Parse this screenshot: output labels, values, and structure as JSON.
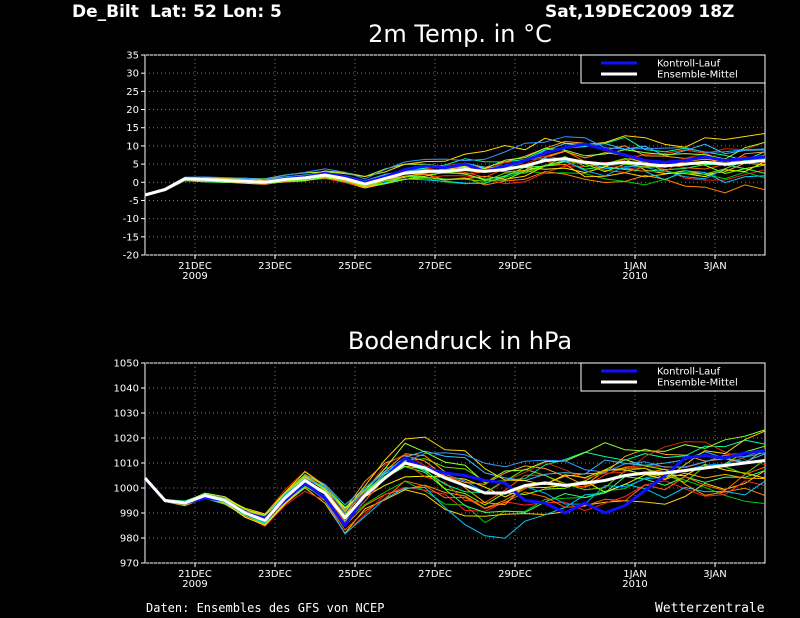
{
  "header": {
    "station": "De_Bilt",
    "coords": "Lat: 52 Lon: 5",
    "run": "Sat,19DEC2009 18Z"
  },
  "footer": {
    "source": "Daten: Ensembles des GFS von NCEP",
    "brand": "Wetterzentrale"
  },
  "x_ticks": [
    {
      "d": 1.25,
      "top": "21DEC",
      "bottom": "2009"
    },
    {
      "d": 3.25,
      "top": "23DEC",
      "bottom": ""
    },
    {
      "d": 5.25,
      "top": "25DEC",
      "bottom": ""
    },
    {
      "d": 7.25,
      "top": "27DEC",
      "bottom": ""
    },
    {
      "d": 9.25,
      "top": "29DEC",
      "bottom": ""
    },
    {
      "d": 12.25,
      "top": "1JAN",
      "bottom": "2010"
    },
    {
      "d": 14.25,
      "top": "3JAN",
      "bottom": ""
    }
  ],
  "legend": [
    {
      "label": "Kontroll-Lauf",
      "color": "#1010ff"
    },
    {
      "label": "Ensemble-Mittel",
      "color": "#ffffff"
    }
  ],
  "member_colors": [
    "#00cc00",
    "#ff8800",
    "#ffcc00",
    "#ff2020",
    "#00ccff",
    "#33ff66",
    "#ffee00",
    "#ff6600",
    "#88ff00",
    "#00aaff",
    "#ff4400",
    "#66dd00",
    "#ffaa00",
    "#00ff99",
    "#ff9933",
    "#cc3300",
    "#33bbff",
    "#99ff33",
    "#ffd700",
    "#3399ff"
  ],
  "chart_data": [
    {
      "type": "line",
      "title": "2m Temp. in °C",
      "x_unit": "days since 19DEC2009 18Z",
      "xlim": [
        0,
        15.5
      ],
      "ylim": [
        -20,
        35
      ],
      "yticks": [
        -20,
        -15,
        -10,
        -5,
        0,
        5,
        10,
        15,
        20,
        25,
        30,
        35
      ],
      "grid": true,
      "legend_position": "top-right",
      "x": [
        0.0,
        0.5,
        1.0,
        1.5,
        2.0,
        2.5,
        3.0,
        3.5,
        4.0,
        4.5,
        5.0,
        5.5,
        6.0,
        6.5,
        7.0,
        7.5,
        8.0,
        8.5,
        9.0,
        9.5,
        10.0,
        10.5,
        11.0,
        11.5,
        12.0,
        12.5,
        13.0,
        13.5,
        14.0,
        14.5,
        15.0,
        15.5
      ],
      "series": [
        {
          "name": "Kontroll-Lauf",
          "values": [
            -3.5,
            -2.0,
            1.0,
            0.8,
            0.5,
            0.3,
            0.0,
            1.0,
            1.5,
            2.5,
            1.5,
            0.0,
            1.5,
            3.5,
            4.5,
            4.0,
            5.0,
            3.0,
            4.5,
            6.0,
            8.0,
            9.5,
            10.5,
            9.0,
            7.5,
            6.0,
            5.5,
            6.0,
            7.0,
            6.0,
            6.5,
            7.0
          ]
        },
        {
          "name": "Ensemble-Mittel",
          "values": [
            -3.5,
            -2.0,
            1.0,
            0.8,
            0.5,
            0.3,
            0.0,
            0.8,
            1.2,
            2.0,
            1.0,
            -0.5,
            1.0,
            2.5,
            3.0,
            3.0,
            3.5,
            3.0,
            3.5,
            4.5,
            6.0,
            6.5,
            5.5,
            5.0,
            5.5,
            5.0,
            4.5,
            5.0,
            5.5,
            5.0,
            5.5,
            6.0
          ]
        }
      ],
      "spread": [
        0,
        0.3,
        0.5,
        0.6,
        0.7,
        0.8,
        0.9,
        1.0,
        1.1,
        1.2,
        1.4,
        1.6,
        2.0,
        2.5,
        3.0,
        3.3,
        3.6,
        3.9,
        4.2,
        4.5,
        4.8,
        5.0,
        5.2,
        5.4,
        5.6,
        5.7,
        5.8,
        5.9,
        6.0,
        6.0,
        6.0,
        6.0
      ],
      "members": 20
    },
    {
      "type": "line",
      "title": "Bodendruck in hPa",
      "x_unit": "days since 19DEC2009 18Z",
      "xlim": [
        0,
        15.5
      ],
      "ylim": [
        970,
        1050
      ],
      "yticks": [
        970,
        980,
        990,
        1000,
        1010,
        1020,
        1030,
        1040,
        1050
      ],
      "grid": true,
      "legend_position": "top-right",
      "x": [
        0.0,
        0.5,
        1.0,
        1.5,
        2.0,
        2.5,
        3.0,
        3.5,
        4.0,
        4.5,
        5.0,
        5.5,
        6.0,
        6.5,
        7.0,
        7.5,
        8.0,
        8.5,
        9.0,
        9.5,
        10.0,
        10.5,
        11.0,
        11.5,
        12.0,
        12.5,
        13.0,
        13.5,
        14.0,
        14.5,
        15.0,
        15.5
      ],
      "series": [
        {
          "name": "Kontroll-Lauf",
          "values": [
            1004.0,
            995.0,
            994.0,
            996.0,
            995.0,
            990.0,
            988.0,
            995.0,
            1002.0,
            996.0,
            985.0,
            997.0,
            1004.0,
            1012.0,
            1008.0,
            1006.0,
            1005.0,
            1003.0,
            1002.0,
            995.0,
            994.0,
            990.0,
            994.0,
            990.0,
            993.0,
            999.0,
            1005.0,
            1012.0,
            1013.0,
            1012.0,
            1014.0,
            1015.0
          ]
        },
        {
          "name": "Ensemble-Mittel",
          "values": [
            1004.0,
            995.0,
            994.0,
            997.0,
            995.0,
            990.0,
            987.0,
            996.0,
            1003.0,
            998.0,
            988.0,
            997.0,
            1004.0,
            1010.0,
            1008.0,
            1004.0,
            1001.0,
            998.0,
            998.0,
            1001.0,
            1002.0,
            1001.0,
            1002.0,
            1003.0,
            1005.0,
            1006.0,
            1006.0,
            1007.0,
            1008.0,
            1009.0,
            1010.0,
            1011.0
          ]
        }
      ],
      "spread": [
        0,
        0.5,
        1.0,
        1.2,
        1.5,
        2.0,
        2.5,
        3.0,
        3.5,
        4.0,
        6.0,
        7.0,
        8.0,
        9.0,
        10.0,
        11.0,
        12.0,
        12.0,
        12.0,
        12.0,
        12.0,
        12.0,
        12.0,
        12.0,
        12.0,
        12.0,
        12.0,
        12.0,
        12.0,
        12.0,
        12.0,
        12.0
      ],
      "members": 20
    }
  ]
}
